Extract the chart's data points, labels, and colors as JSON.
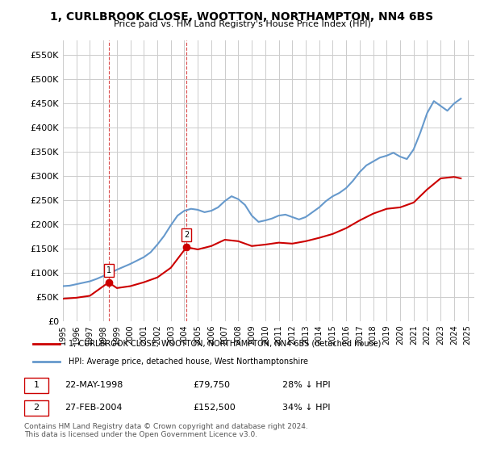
{
  "title": "1, CURLBROOK CLOSE, WOOTTON, NORTHAMPTON, NN4 6BS",
  "subtitle": "Price paid vs. HM Land Registry's House Price Index (HPI)",
  "legend_line1": "1, CURLBROOK CLOSE, WOOTTON, NORTHAMPTON, NN4 6BS (detached house)",
  "legend_line2": "HPI: Average price, detached house, West Northamptonshire",
  "footnote": "Contains HM Land Registry data © Crown copyright and database right 2024.\nThis data is licensed under the Open Government Licence v3.0.",
  "sale1_label": "1",
  "sale1_date": "22-MAY-1998",
  "sale1_price": "£79,750",
  "sale1_hpi": "28% ↓ HPI",
  "sale1_year": 1998.39,
  "sale1_value": 79750,
  "sale2_label": "2",
  "sale2_date": "27-FEB-2004",
  "sale2_price": "£152,500",
  "sale2_hpi": "34% ↓ HPI",
  "sale2_year": 2004.16,
  "sale2_value": 152500,
  "red_color": "#cc0000",
  "blue_color": "#6699cc",
  "dashed_color": "#cc0000",
  "bg_color": "#ffffff",
  "grid_color": "#cccccc",
  "ylim_min": 0,
  "ylim_max": 580000,
  "xlim_min": 1995.0,
  "xlim_max": 2025.5,
  "ytick_values": [
    0,
    50000,
    100000,
    150000,
    200000,
    250000,
    300000,
    350000,
    400000,
    450000,
    500000,
    550000
  ],
  "ytick_labels": [
    "£0",
    "£50K",
    "£100K",
    "£150K",
    "£200K",
    "£250K",
    "£300K",
    "£350K",
    "£400K",
    "£450K",
    "£500K",
    "£550K"
  ],
  "xtick_years": [
    1995,
    1996,
    1997,
    1998,
    1999,
    2000,
    2001,
    2002,
    2003,
    2004,
    2005,
    2006,
    2007,
    2008,
    2009,
    2010,
    2011,
    2012,
    2013,
    2014,
    2015,
    2016,
    2017,
    2018,
    2019,
    2020,
    2021,
    2022,
    2023,
    2024,
    2025
  ],
  "hpi_years": [
    1995,
    1995.5,
    1996,
    1996.5,
    1997,
    1997.5,
    1998,
    1998.5,
    1999,
    1999.5,
    2000,
    2000.5,
    2001,
    2001.5,
    2002,
    2002.5,
    2003,
    2003.5,
    2004,
    2004.5,
    2005,
    2005.5,
    2006,
    2006.5,
    2007,
    2007.5,
    2008,
    2008.5,
    2009,
    2009.5,
    2010,
    2010.5,
    2011,
    2011.5,
    2012,
    2012.5,
    2013,
    2013.5,
    2014,
    2014.5,
    2015,
    2015.5,
    2016,
    2016.5,
    2017,
    2017.5,
    2018,
    2018.5,
    2019,
    2019.5,
    2020,
    2020.5,
    2021,
    2021.5,
    2022,
    2022.5,
    2023,
    2023.5,
    2024,
    2024.5
  ],
  "hpi_values": [
    72000,
    73000,
    76000,
    79000,
    82000,
    87000,
    93000,
    99000,
    106000,
    112000,
    118000,
    125000,
    132000,
    142000,
    158000,
    176000,
    198000,
    218000,
    228000,
    232000,
    230000,
    225000,
    228000,
    235000,
    248000,
    258000,
    252000,
    240000,
    218000,
    205000,
    208000,
    212000,
    218000,
    220000,
    215000,
    210000,
    215000,
    225000,
    235000,
    248000,
    258000,
    265000,
    275000,
    290000,
    308000,
    322000,
    330000,
    338000,
    342000,
    348000,
    340000,
    335000,
    355000,
    390000,
    430000,
    455000,
    445000,
    435000,
    450000,
    460000
  ],
  "red_years": [
    1995,
    1996,
    1997,
    1998.39,
    1999,
    2000,
    2001,
    2002,
    2003,
    2004.16,
    2005,
    2006,
    2007,
    2008,
    2009,
    2010,
    2011,
    2012,
    2013,
    2014,
    2015,
    2016,
    2017,
    2018,
    2019,
    2020,
    2021,
    2022,
    2023,
    2024,
    2024.5
  ],
  "red_values": [
    46000,
    48000,
    52000,
    79750,
    68000,
    72000,
    80000,
    90000,
    110000,
    152500,
    148000,
    155000,
    168000,
    165000,
    155000,
    158000,
    162000,
    160000,
    165000,
    172000,
    180000,
    192000,
    208000,
    222000,
    232000,
    235000,
    245000,
    272000,
    295000,
    298000,
    295000
  ]
}
